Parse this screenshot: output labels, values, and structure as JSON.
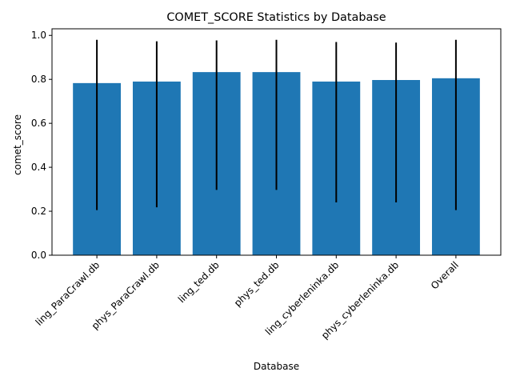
{
  "chart_data": {
    "type": "bar",
    "title": "COMET_SCORE Statistics by Database",
    "xlabel": "Database",
    "ylabel": "comet_score",
    "categories": [
      "ling_ParaCrawl.db",
      "phys_ParaCrawl.db",
      "ling_ted.db",
      "phys_ted.db",
      "ling_cyberleninka.db",
      "phys_cyberleninka.db",
      "Overall"
    ],
    "values": [
      0.783,
      0.79,
      0.833,
      0.833,
      0.79,
      0.797,
      0.805
    ],
    "error_low": [
      0.205,
      0.218,
      0.297,
      0.297,
      0.24,
      0.24,
      0.205
    ],
    "error_high": [
      0.98,
      0.973,
      0.977,
      0.98,
      0.97,
      0.967,
      0.98
    ],
    "ylim": [
      0,
      1.03
    ],
    "yticks": [
      "0.0",
      "0.2",
      "0.4",
      "0.6",
      "0.8",
      "1.0"
    ],
    "grid": false,
    "bar_color": "#1f77b4",
    "error_color": "#000000"
  }
}
